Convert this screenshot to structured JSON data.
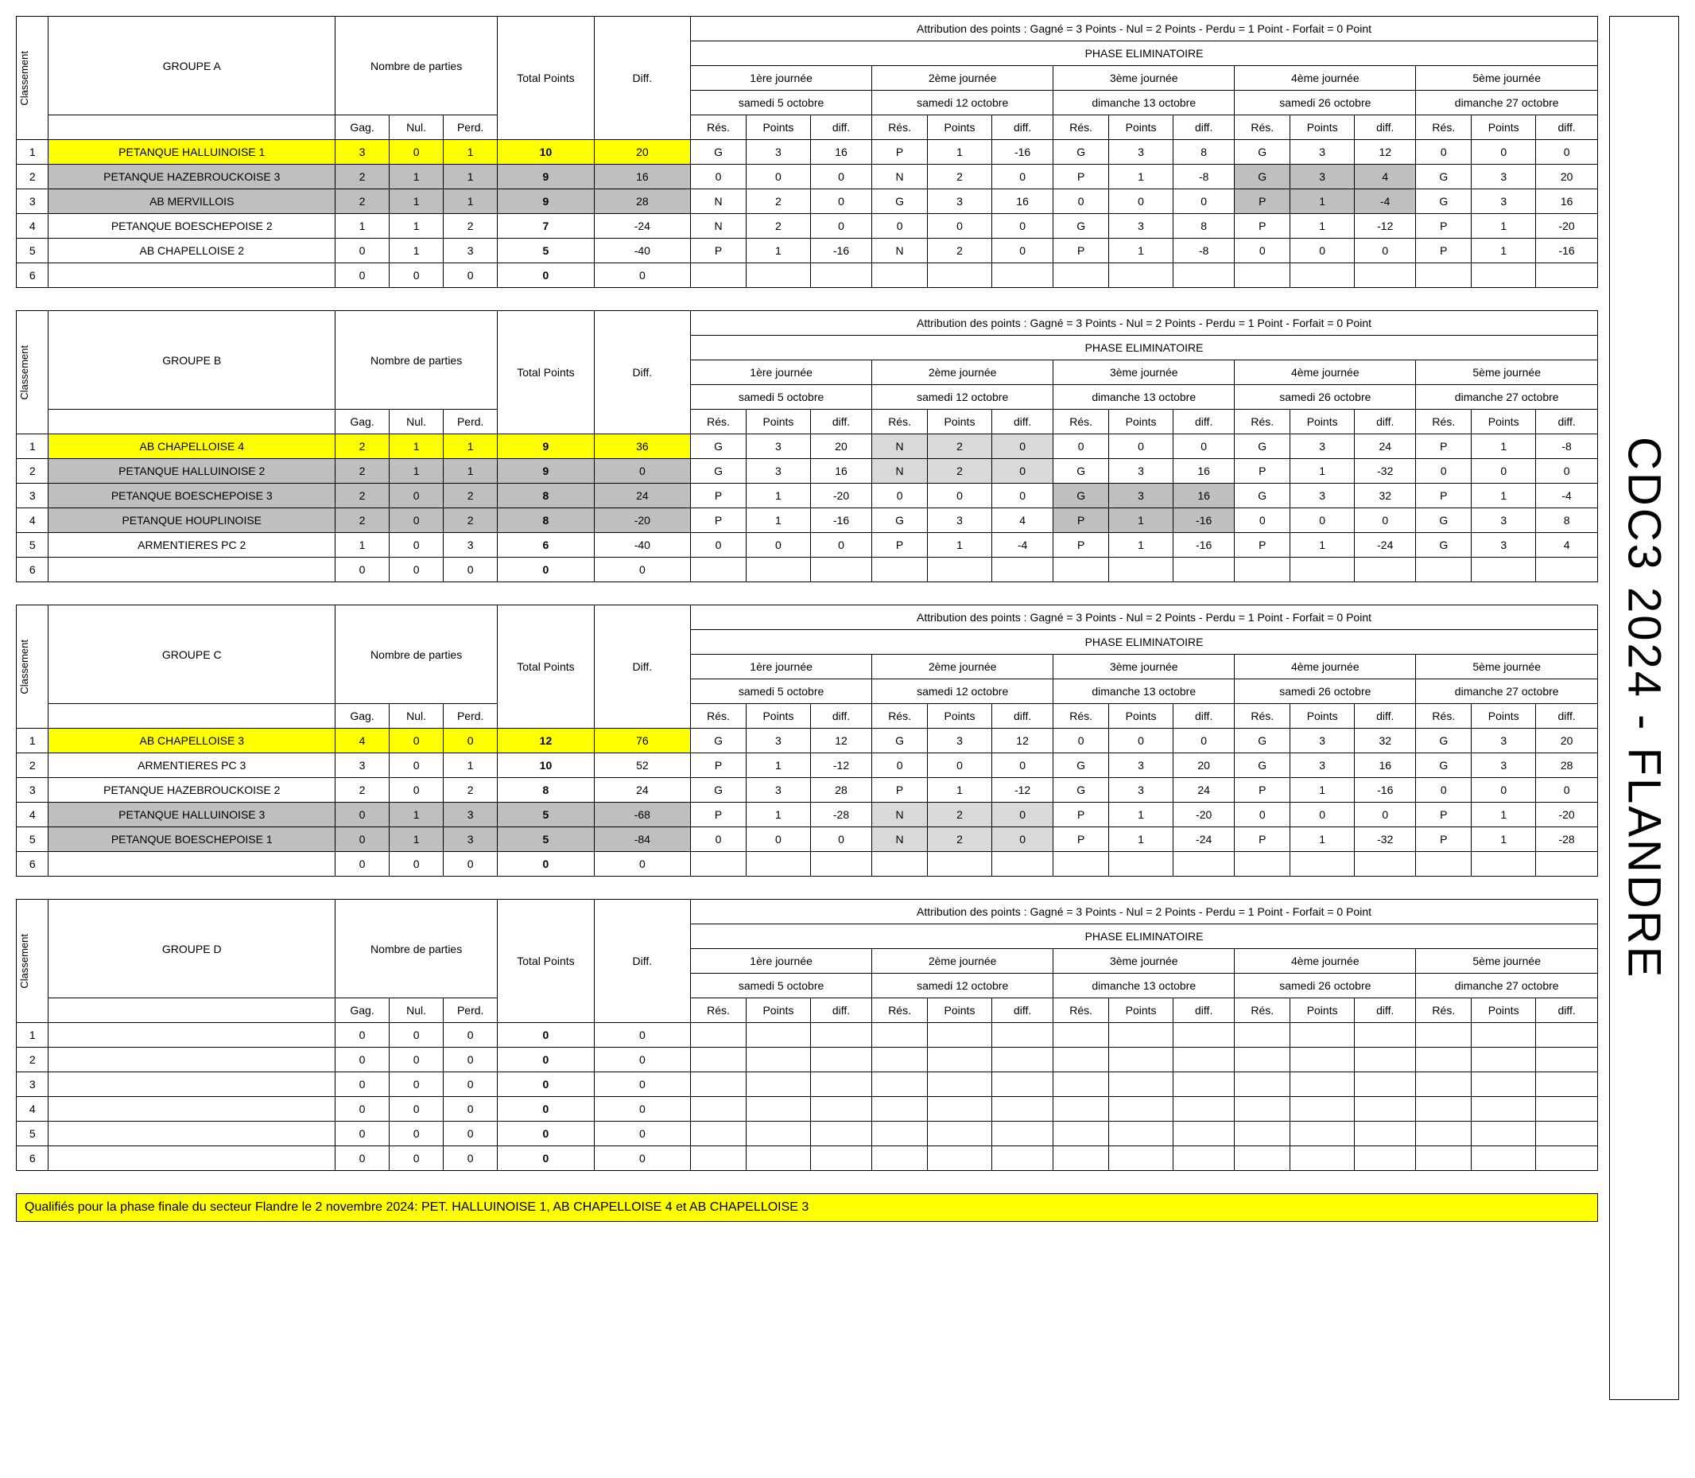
{
  "page_title_side": "CDC3 2024 - FLANDRE",
  "footer": "Qualifiés pour la phase finale du secteur Flandre le 2 novembre 2024: PET. HALLUINOISE 1, AB CHAPELLOISE 4 et AB CHAPELLOISE 3",
  "labels": {
    "classement": "Classement",
    "nombre_de_parties": "Nombre de parties",
    "total_points": "Total Points",
    "diff": "Diff.",
    "gag": "Gag.",
    "nul": "Nul.",
    "perd": "Perd.",
    "attribution": "Attribution des points : Gagné = 3 Points - Nul = 2 Points - Perdu = 1 Point - Forfait = 0 Point",
    "phase": "PHASE ELIMINATOIRE",
    "res": "Rés.",
    "points": "Points",
    "jdiff": "diff."
  },
  "journees": [
    {
      "label": "1ère journée",
      "date": "samedi 5 octobre"
    },
    {
      "label": "2ème journée",
      "date": "samedi 12 octobre"
    },
    {
      "label": "3ème journée",
      "date": "dimanche 13 octobre"
    },
    {
      "label": "4ème journée",
      "date": "samedi 26 octobre"
    },
    {
      "label": "5ème journée",
      "date": "dimanche 27 octobre"
    }
  ],
  "groups": [
    {
      "name": "GROUPE A",
      "rows": [
        {
          "rank": 1,
          "team": "PETANQUE HALLUINOISE 1",
          "hl": "yellow",
          "g": 3,
          "n": 0,
          "p": 1,
          "tot": 10,
          "diff": 20,
          "j": [
            [
              "G",
              "3",
              "16",
              ""
            ],
            [
              "P",
              "1",
              "-16",
              ""
            ],
            [
              "G",
              "3",
              "8",
              ""
            ],
            [
              "G",
              "3",
              "12",
              ""
            ],
            [
              "0",
              "0",
              "0",
              ""
            ]
          ]
        },
        {
          "rank": 2,
          "team": "PETANQUE HAZEBROUCKOISE 3",
          "hl": "grey",
          "g": 2,
          "n": 1,
          "p": 1,
          "tot": 9,
          "diff": 16,
          "j": [
            [
              "0",
              "0",
              "0",
              ""
            ],
            [
              "N",
              "2",
              "0",
              ""
            ],
            [
              "P",
              "1",
              "-8",
              ""
            ],
            [
              "G",
              "3",
              "4",
              "grey"
            ],
            [
              "G",
              "3",
              "20",
              ""
            ]
          ]
        },
        {
          "rank": 3,
          "team": "AB MERVILLOIS",
          "hl": "grey",
          "g": 2,
          "n": 1,
          "p": 1,
          "tot": 9,
          "diff": 28,
          "j": [
            [
              "N",
              "2",
              "0",
              ""
            ],
            [
              "G",
              "3",
              "16",
              ""
            ],
            [
              "0",
              "0",
              "0",
              ""
            ],
            [
              "P",
              "1",
              "-4",
              "grey"
            ],
            [
              "G",
              "3",
              "16",
              ""
            ]
          ]
        },
        {
          "rank": 4,
          "team": "PETANQUE BOESCHEPOISE 2",
          "hl": "",
          "g": 1,
          "n": 1,
          "p": 2,
          "tot": 7,
          "diff": -24,
          "j": [
            [
              "N",
              "2",
              "0",
              ""
            ],
            [
              "0",
              "0",
              "0",
              ""
            ],
            [
              "G",
              "3",
              "8",
              ""
            ],
            [
              "P",
              "1",
              "-12",
              ""
            ],
            [
              "P",
              "1",
              "-20",
              ""
            ]
          ]
        },
        {
          "rank": 5,
          "team": "AB CHAPELLOISE 2",
          "hl": "",
          "g": 0,
          "n": 1,
          "p": 3,
          "tot": 5,
          "diff": -40,
          "j": [
            [
              "P",
              "1",
              "-16",
              ""
            ],
            [
              "N",
              "2",
              "0",
              ""
            ],
            [
              "P",
              "1",
              "-8",
              ""
            ],
            [
              "0",
              "0",
              "0",
              ""
            ],
            [
              "P",
              "1",
              "-16",
              ""
            ]
          ]
        },
        {
          "rank": 6,
          "team": "",
          "hl": "",
          "g": 0,
          "n": 0,
          "p": 0,
          "tot": 0,
          "diff": 0,
          "j": [
            [
              "",
              "",
              "",
              ""
            ],
            [
              "",
              "",
              "",
              ""
            ],
            [
              "",
              "",
              "",
              ""
            ],
            [
              "",
              "",
              "",
              ""
            ],
            [
              "",
              "",
              "",
              ""
            ]
          ]
        }
      ]
    },
    {
      "name": "GROUPE B",
      "rows": [
        {
          "rank": 1,
          "team": "AB CHAPELLOISE 4",
          "hl": "yellow",
          "g": 2,
          "n": 1,
          "p": 1,
          "tot": 9,
          "diff": 36,
          "j": [
            [
              "G",
              "3",
              "20",
              ""
            ],
            [
              "N",
              "2",
              "0",
              "lgrey"
            ],
            [
              "0",
              "0",
              "0",
              ""
            ],
            [
              "G",
              "3",
              "24",
              ""
            ],
            [
              "P",
              "1",
              "-8",
              ""
            ]
          ]
        },
        {
          "rank": 2,
          "team": "PETANQUE HALLUINOISE 2",
          "hl": "grey",
          "g": 2,
          "n": 1,
          "p": 1,
          "tot": 9,
          "diff": 0,
          "j": [
            [
              "G",
              "3",
              "16",
              ""
            ],
            [
              "N",
              "2",
              "0",
              "lgrey"
            ],
            [
              "G",
              "3",
              "16",
              ""
            ],
            [
              "P",
              "1",
              "-32",
              ""
            ],
            [
              "0",
              "0",
              "0",
              ""
            ]
          ]
        },
        {
          "rank": 3,
          "team": "PETANQUE BOESCHEPOISE 3",
          "hl": "grey",
          "g": 2,
          "n": 0,
          "p": 2,
          "tot": 8,
          "diff": 24,
          "j": [
            [
              "P",
              "1",
              "-20",
              ""
            ],
            [
              "0",
              "0",
              "0",
              ""
            ],
            [
              "G",
              "3",
              "16",
              "grey"
            ],
            [
              "G",
              "3",
              "32",
              ""
            ],
            [
              "P",
              "1",
              "-4",
              ""
            ]
          ]
        },
        {
          "rank": 4,
          "team": "PETANQUE HOUPLINOISE",
          "hl": "grey",
          "g": 2,
          "n": 0,
          "p": 2,
          "tot": 8,
          "diff": -20,
          "j": [
            [
              "P",
              "1",
              "-16",
              ""
            ],
            [
              "G",
              "3",
              "4",
              ""
            ],
            [
              "P",
              "1",
              "-16",
              "grey"
            ],
            [
              "0",
              "0",
              "0",
              ""
            ],
            [
              "G",
              "3",
              "8",
              ""
            ]
          ]
        },
        {
          "rank": 5,
          "team": "ARMENTIERES PC 2",
          "hl": "",
          "g": 1,
          "n": 0,
          "p": 3,
          "tot": 6,
          "diff": -40,
          "j": [
            [
              "0",
              "0",
              "0",
              ""
            ],
            [
              "P",
              "1",
              "-4",
              ""
            ],
            [
              "P",
              "1",
              "-16",
              ""
            ],
            [
              "P",
              "1",
              "-24",
              ""
            ],
            [
              "G",
              "3",
              "4",
              ""
            ]
          ]
        },
        {
          "rank": 6,
          "team": "",
          "hl": "",
          "g": 0,
          "n": 0,
          "p": 0,
          "tot": 0,
          "diff": 0,
          "j": [
            [
              "",
              "",
              "",
              ""
            ],
            [
              "",
              "",
              "",
              ""
            ],
            [
              "",
              "",
              "",
              ""
            ],
            [
              "",
              "",
              "",
              ""
            ],
            [
              "",
              "",
              "",
              ""
            ]
          ]
        }
      ]
    },
    {
      "name": "GROUPE C",
      "rows": [
        {
          "rank": 1,
          "team": "AB CHAPELLOISE 3",
          "hl": "yellow",
          "g": 4,
          "n": 0,
          "p": 0,
          "tot": 12,
          "diff": 76,
          "j": [
            [
              "G",
              "3",
              "12",
              ""
            ],
            [
              "G",
              "3",
              "12",
              ""
            ],
            [
              "0",
              "0",
              "0",
              ""
            ],
            [
              "G",
              "3",
              "32",
              ""
            ],
            [
              "G",
              "3",
              "20",
              ""
            ]
          ]
        },
        {
          "rank": 2,
          "team": "ARMENTIERES PC 3",
          "hl": "",
          "g": 3,
          "n": 0,
          "p": 1,
          "tot": 10,
          "diff": 52,
          "j": [
            [
              "P",
              "1",
              "-12",
              ""
            ],
            [
              "0",
              "0",
              "0",
              ""
            ],
            [
              "G",
              "3",
              "20",
              ""
            ],
            [
              "G",
              "3",
              "16",
              ""
            ],
            [
              "G",
              "3",
              "28",
              ""
            ]
          ]
        },
        {
          "rank": 3,
          "team": "PETANQUE HAZEBROUCKOISE 2",
          "hl": "",
          "g": 2,
          "n": 0,
          "p": 2,
          "tot": 8,
          "diff": 24,
          "j": [
            [
              "G",
              "3",
              "28",
              ""
            ],
            [
              "P",
              "1",
              "-12",
              ""
            ],
            [
              "G",
              "3",
              "24",
              ""
            ],
            [
              "P",
              "1",
              "-16",
              ""
            ],
            [
              "0",
              "0",
              "0",
              ""
            ]
          ]
        },
        {
          "rank": 4,
          "team": "PETANQUE HALLUINOISE 3",
          "hl": "grey",
          "g": 0,
          "n": 1,
          "p": 3,
          "tot": 5,
          "diff": -68,
          "j": [
            [
              "P",
              "1",
              "-28",
              ""
            ],
            [
              "N",
              "2",
              "0",
              "lgrey"
            ],
            [
              "P",
              "1",
              "-20",
              ""
            ],
            [
              "0",
              "0",
              "0",
              ""
            ],
            [
              "P",
              "1",
              "-20",
              ""
            ]
          ]
        },
        {
          "rank": 5,
          "team": "PETANQUE BOESCHEPOISE 1",
          "hl": "grey",
          "g": 0,
          "n": 1,
          "p": 3,
          "tot": 5,
          "diff": -84,
          "j": [
            [
              "0",
              "0",
              "0",
              ""
            ],
            [
              "N",
              "2",
              "0",
              "lgrey"
            ],
            [
              "P",
              "1",
              "-24",
              ""
            ],
            [
              "P",
              "1",
              "-32",
              ""
            ],
            [
              "P",
              "1",
              "-28",
              ""
            ]
          ]
        },
        {
          "rank": 6,
          "team": "",
          "hl": "",
          "g": 0,
          "n": 0,
          "p": 0,
          "tot": 0,
          "diff": 0,
          "j": [
            [
              "",
              "",
              "",
              ""
            ],
            [
              "",
              "",
              "",
              ""
            ],
            [
              "",
              "",
              "",
              ""
            ],
            [
              "",
              "",
              "",
              ""
            ],
            [
              "",
              "",
              "",
              ""
            ]
          ]
        }
      ]
    },
    {
      "name": "GROUPE D",
      "rows": [
        {
          "rank": 1,
          "team": "",
          "hl": "",
          "g": 0,
          "n": 0,
          "p": 0,
          "tot": 0,
          "diff": 0,
          "j": [
            [
              "",
              "",
              "",
              ""
            ],
            [
              "",
              "",
              "",
              ""
            ],
            [
              "",
              "",
              "",
              ""
            ],
            [
              "",
              "",
              "",
              ""
            ],
            [
              "",
              "",
              "",
              ""
            ]
          ]
        },
        {
          "rank": 2,
          "team": "",
          "hl": "",
          "g": 0,
          "n": 0,
          "p": 0,
          "tot": 0,
          "diff": 0,
          "j": [
            [
              "",
              "",
              "",
              ""
            ],
            [
              "",
              "",
              "",
              ""
            ],
            [
              "",
              "",
              "",
              ""
            ],
            [
              "",
              "",
              "",
              ""
            ],
            [
              "",
              "",
              "",
              ""
            ]
          ]
        },
        {
          "rank": 3,
          "team": "",
          "hl": "",
          "g": 0,
          "n": 0,
          "p": 0,
          "tot": 0,
          "diff": 0,
          "j": [
            [
              "",
              "",
              "",
              ""
            ],
            [
              "",
              "",
              "",
              ""
            ],
            [
              "",
              "",
              "",
              ""
            ],
            [
              "",
              "",
              "",
              ""
            ],
            [
              "",
              "",
              "",
              ""
            ]
          ]
        },
        {
          "rank": 4,
          "team": "",
          "hl": "",
          "g": 0,
          "n": 0,
          "p": 0,
          "tot": 0,
          "diff": 0,
          "j": [
            [
              "",
              "",
              "",
              ""
            ],
            [
              "",
              "",
              "",
              ""
            ],
            [
              "",
              "",
              "",
              ""
            ],
            [
              "",
              "",
              "",
              ""
            ],
            [
              "",
              "",
              "",
              ""
            ]
          ]
        },
        {
          "rank": 5,
          "team": "",
          "hl": "",
          "g": 0,
          "n": 0,
          "p": 0,
          "tot": 0,
          "diff": 0,
          "j": [
            [
              "",
              "",
              "",
              ""
            ],
            [
              "",
              "",
              "",
              ""
            ],
            [
              "",
              "",
              "",
              ""
            ],
            [
              "",
              "",
              "",
              ""
            ],
            [
              "",
              "",
              "",
              ""
            ]
          ]
        },
        {
          "rank": 6,
          "team": "",
          "hl": "",
          "g": 0,
          "n": 0,
          "p": 0,
          "tot": 0,
          "diff": 0,
          "j": [
            [
              "",
              "",
              "",
              ""
            ],
            [
              "",
              "",
              "",
              ""
            ],
            [
              "",
              "",
              "",
              ""
            ],
            [
              "",
              "",
              "",
              ""
            ],
            [
              "",
              "",
              "",
              ""
            ]
          ]
        }
      ]
    }
  ]
}
